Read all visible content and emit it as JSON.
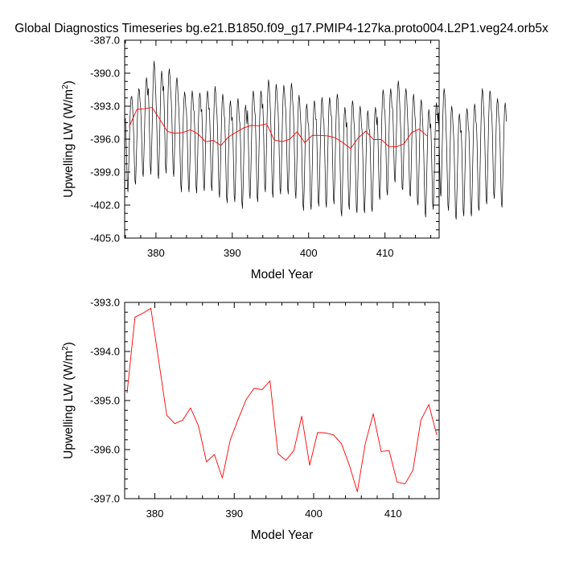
{
  "title": "Global Diagnostics Timeseries bg.e21.B1850.f09_g17.PMIP4-127ka.proto004.L2P1.veg24.orb5x",
  "colors": {
    "monthly": "#000000",
    "annual": "#ff0000",
    "axis": "#000000",
    "background": "#ffffff"
  },
  "chart_data": [
    {
      "type": "line",
      "xlabel": "Model Year",
      "ylabel": "Upwelling LW (W/m",
      "ylabel_sup": "2",
      "ylabel_end": ")",
      "xlim": [
        375.9,
        417.1
      ],
      "ylim": [
        -405.0,
        -387.0
      ],
      "xticks": [
        380,
        390,
        400,
        410
      ],
      "xtick_labels": [
        "380",
        "390",
        "400",
        "410"
      ],
      "yticks": [
        -405.0,
        -402.0,
        -399.0,
        -396.0,
        -393.0,
        -390.0,
        -387.0
      ],
      "ytick_labels": [
        "-405.0",
        "-402.0",
        "-399.0",
        "-396.0",
        "-393.0",
        "-390.0",
        "-387.0"
      ],
      "grid": false,
      "series": [
        {
          "color": "#000000",
          "x_start": 376.0,
          "x_step": 0.0833333,
          "values": [
            -394.1,
            -395.8,
            -398.0,
            -400.2,
            -400.8,
            -399.0,
            -396.7,
            -394.4,
            -392.9,
            -392.2,
            -392.1,
            -392.8,
            -393.9,
            -395.6,
            -397.9,
            -399.8,
            -400.1,
            -398.2,
            -396.0,
            -393.8,
            -392.2,
            -391.4,
            -391.6,
            -392.6,
            -393.2,
            -394.7,
            -397.0,
            -399.0,
            -399.4,
            -397.6,
            -395.3,
            -392.9,
            -391.2,
            -390.4,
            -390.8,
            -392.0,
            -391.4,
            -393.2,
            -395.8,
            -398.4,
            -399.2,
            -397.6,
            -395.0,
            -392.0,
            -389.9,
            -388.9,
            -389.5,
            -390.9,
            -392.3,
            -394.0,
            -396.5,
            -399.0,
            -399.6,
            -397.9,
            -395.4,
            -392.6,
            -390.6,
            -389.8,
            -390.4,
            -391.6,
            -391.2,
            -393.1,
            -395.7,
            -398.4,
            -399.1,
            -397.4,
            -394.8,
            -391.9,
            -390.1,
            -389.6,
            -390.3,
            -391.5,
            -392.4,
            -394.0,
            -396.5,
            -398.9,
            -399.4,
            -397.6,
            -395.0,
            -392.5,
            -390.8,
            -390.4,
            -391.1,
            -392.3,
            -393.3,
            -395.0,
            -397.6,
            -400.1,
            -400.8,
            -398.9,
            -396.6,
            -394.1,
            -392.4,
            -391.7,
            -392.1,
            -393.1,
            -393.5,
            -395.1,
            -397.7,
            -400.2,
            -400.8,
            -399.1,
            -396.7,
            -394.1,
            -392.3,
            -391.6,
            -392.1,
            -393.3,
            -393.5,
            -395.2,
            -397.9,
            -400.3,
            -400.9,
            -399.0,
            -396.5,
            -394.0,
            -392.3,
            -391.8,
            -392.3,
            -393.5,
            -393.3,
            -395.1,
            -397.7,
            -400.2,
            -400.7,
            -399.0,
            -396.5,
            -393.9,
            -392.3,
            -391.6,
            -392.0,
            -393.3,
            -393.2,
            -395.0,
            -397.6,
            -400.2,
            -400.7,
            -398.8,
            -396.4,
            -393.8,
            -391.9,
            -391.2,
            -391.8,
            -393.0,
            -393.8,
            -395.5,
            -398.2,
            -400.8,
            -401.3,
            -399.6,
            -397.0,
            -394.4,
            -392.6,
            -391.9,
            -392.4,
            -393.7,
            -394.1,
            -395.9,
            -398.7,
            -401.3,
            -401.8,
            -400.0,
            -397.4,
            -394.9,
            -393.1,
            -392.5,
            -393.1,
            -394.3,
            -394.0,
            -395.7,
            -398.4,
            -401.2,
            -401.7,
            -399.9,
            -397.2,
            -394.6,
            -392.8,
            -392.3,
            -393.0,
            -394.2,
            -394.6,
            -396.3,
            -399.1,
            -401.7,
            -402.3,
            -400.5,
            -397.8,
            -395.2,
            -393.4,
            -392.9,
            -393.6,
            -394.6,
            -393.4,
            -395.3,
            -398.1,
            -400.9,
            -401.4,
            -399.5,
            -396.8,
            -394.1,
            -392.2,
            -391.6,
            -392.1,
            -393.3,
            -393.8,
            -395.7,
            -398.5,
            -401.2,
            -401.7,
            -399.8,
            -397.0,
            -394.3,
            -392.4,
            -391.6,
            -392.0,
            -393.2,
            -392.8,
            -394.7,
            -397.6,
            -400.3,
            -400.8,
            -398.8,
            -396.1,
            -393.4,
            -391.4,
            -390.6,
            -391.1,
            -392.2,
            -393.5,
            -395.4,
            -398.2,
            -400.8,
            -401.3,
            -399.3,
            -396.5,
            -393.8,
            -391.8,
            -391.0,
            -391.5,
            -392.6,
            -393.4,
            -395.2,
            -397.9,
            -400.5,
            -401.0,
            -399.1,
            -396.5,
            -393.8,
            -391.9,
            -391.1,
            -391.5,
            -392.7,
            -393.3,
            -395.2,
            -397.9,
            -400.5,
            -401.0,
            -399.0,
            -396.4,
            -393.6,
            -391.7,
            -390.9,
            -391.4,
            -392.6,
            -393.4,
            -395.2,
            -398.1,
            -400.8,
            -401.4,
            -399.6,
            -397.1,
            -394.4,
            -392.6,
            -392.0,
            -392.6,
            -393.8,
            -394.8,
            -396.6,
            -399.4,
            -401.9,
            -402.5,
            -400.6,
            -398.0,
            -395.3,
            -393.4,
            -392.8,
            -393.3,
            -394.5,
            -394.7,
            -396.6,
            -399.3,
            -401.9,
            -402.4,
            -400.5,
            -397.8,
            -395.1,
            -393.2,
            -392.5,
            -392.9,
            -394.2,
            -394.2,
            -396.1,
            -398.9,
            -401.6,
            -402.1,
            -400.3,
            -397.7,
            -394.9,
            -392.9,
            -392.2,
            -392.7,
            -394.0,
            -394.4,
            -396.3,
            -399.0,
            -401.7,
            -402.2,
            -400.3,
            -397.6,
            -394.9,
            -392.9,
            -392.2,
            -392.6,
            -393.8,
            -393.9,
            -395.9,
            -398.7,
            -401.4,
            -401.9,
            -400.0,
            -397.3,
            -394.5,
            -392.6,
            -391.9,
            -392.3,
            -393.6,
            -395.1,
            -397.0,
            -399.8,
            -402.5,
            -403.0,
            -401.1,
            -398.5,
            -395.7,
            -393.8,
            -393.1,
            -393.5,
            -394.9,
            -394.5,
            -396.4,
            -399.2,
            -401.9,
            -402.4,
            -400.6,
            -397.9,
            -395.2,
            -393.2,
            -392.5,
            -392.9,
            -394.2,
            -395.0,
            -396.9,
            -399.6,
            -402.2,
            -402.7,
            -400.9,
            -398.2,
            -395.6,
            -393.6,
            -393.0,
            -393.5,
            -394.7,
            -395.2,
            -397.0,
            -399.7,
            -402.3,
            -402.7,
            -401.0,
            -398.5,
            -395.9,
            -394.0,
            -393.4,
            -393.9,
            -395.1,
            -395.2,
            -397.0,
            -399.6,
            -402.2,
            -402.6,
            -400.8,
            -398.3,
            -395.6,
            -393.7,
            -393.1,
            -393.5,
            -394.7,
            -394.0,
            -395.8,
            -398.4,
            -401.1,
            -401.5,
            -399.7,
            -397.1,
            -394.3,
            -392.3,
            -391.5,
            -391.9,
            -393.2,
            -393.5,
            -395.3,
            -398.0,
            -400.7,
            -401.1,
            -399.3,
            -396.7,
            -394.0,
            -392.1,
            -391.4,
            -391.9,
            -393.1,
            -393.2,
            -394.6,
            -397.3,
            -399.6,
            -399.9,
            -398.0,
            -395.5,
            -393.0,
            -391.3,
            -390.7,
            -391.3,
            -392.5,
            -394.0,
            -395.4,
            -398.0,
            -400.4,
            -400.6,
            -398.8,
            -396.3,
            -393.7,
            -392.0,
            -391.4,
            -391.9,
            -393.2,
            -394.6,
            -396.1,
            -398.7,
            -401.0,
            -401.2,
            -399.3,
            -396.8,
            -394.2,
            -392.5,
            -391.9,
            -392.5,
            -393.8,
            -394.5,
            -396.2,
            -399.0,
            -401.6,
            -402.0,
            -400.2,
            -397.6,
            -394.9,
            -393.0,
            -392.4,
            -392.9,
            -394.1,
            -395.3,
            -397.2,
            -400.0,
            -402.6,
            -403.1,
            -401.2,
            -398.6,
            -395.9,
            -393.9,
            -393.3,
            -393.8,
            -395.0,
            -394.6,
            -396.5,
            -399.2,
            -401.9,
            -402.4,
            -400.6,
            -398.0,
            -395.3,
            -393.3,
            -392.7,
            -393.2,
            -394.4,
            -393.6,
            -395.4,
            -398.2,
            -400.8,
            -401.2,
            -399.4,
            -396.8,
            -394.0,
            -392.1,
            -391.4,
            -391.9,
            -393.1,
            -394.8,
            -396.7,
            -399.4,
            -402.0,
            -402.5,
            -400.7,
            -398.1,
            -395.5,
            -393.6,
            -393.0,
            -393.5,
            -394.7,
            -395.7,
            -397.6,
            -400.3,
            -402.9,
            -403.3,
            -401.4,
            -398.9,
            -396.2,
            -394.3,
            -393.7,
            -394.2,
            -395.4,
            -395.2,
            -397.2,
            -399.9,
            -402.5,
            -403.0,
            -401.1,
            -398.5,
            -395.7,
            -393.8,
            -393.2,
            -393.7,
            -394.9,
            -395.3,
            -397.3,
            -400.0,
            -402.6,
            -403.0,
            -401.1,
            -398.3,
            -395.6,
            -393.5,
            -392.8,
            -393.2,
            -394.4,
            -394.7,
            -396.7,
            -399.6,
            -402.2,
            -402.5,
            -400.4,
            -397.5,
            -394.6,
            -392.4,
            -391.4,
            -391.8,
            -393.0,
            -394.1,
            -396.1,
            -398.9,
            -401.5,
            -401.9,
            -399.9,
            -397.2,
            -394.4,
            -392.4,
            -391.6,
            -391.9,
            -393.2,
            -393.8,
            -395.5,
            -398.3,
            -400.9,
            -401.4,
            -399.6,
            -397.2,
            -394.6,
            -392.8,
            -392.3,
            -392.8,
            -394.0,
            -394.6,
            -396.4,
            -399.2,
            -401.8,
            -402.2,
            -400.4,
            -397.9,
            -395.2,
            -393.3,
            -392.7,
            -393.2,
            -394.4
          ]
        },
        {
          "color": "#ff0000",
          "x": [
            376.5,
            377.5,
            378.5,
            379.5,
            380.5,
            381.5,
            382.5,
            383.5,
            384.5,
            385.5,
            386.5,
            387.5,
            388.5,
            389.5,
            390.5,
            391.5,
            392.5,
            393.5,
            394.5,
            395.5,
            396.5,
            397.5,
            398.5,
            399.5,
            400.5,
            401.5,
            402.5,
            403.5,
            404.5,
            405.5,
            406.5,
            407.5,
            408.5,
            409.5,
            410.5,
            411.5,
            412.5,
            413.5,
            414.5,
            415.5
          ],
          "values": [
            -394.85,
            -393.3,
            -393.22,
            -393.12,
            -394.2,
            -395.3,
            -395.47,
            -395.4,
            -395.15,
            -395.52,
            -396.25,
            -396.1,
            -396.58,
            -395.8,
            -395.38,
            -394.98,
            -394.75,
            -394.78,
            -394.6,
            -396.08,
            -396.22,
            -396.02,
            -395.32,
            -396.32,
            -395.65,
            -395.66,
            -395.7,
            -395.88,
            -396.32,
            -396.86,
            -395.88,
            -395.27,
            -396.04,
            -396.02,
            -396.66,
            -396.7,
            -396.42,
            -395.4,
            -395.08,
            -395.7
          ]
        }
      ]
    },
    {
      "type": "line",
      "xlabel": "Model Year",
      "ylabel": "Upwelling LW (W/m",
      "ylabel_sup": "2",
      "ylabel_end": ")",
      "xlim": [
        376.2,
        415.8
      ],
      "ylim": [
        -397.0,
        -393.0
      ],
      "xticks": [
        380,
        390,
        400,
        410
      ],
      "xtick_labels": [
        "380",
        "390",
        "400",
        "410"
      ],
      "yticks": [
        -397.0,
        -396.0,
        -395.0,
        -394.0,
        -393.0
      ],
      "ytick_labels": [
        "-397.0",
        "-396.0",
        "-395.0",
        "-394.0",
        "-393.0"
      ],
      "grid": false,
      "series": [
        {
          "color": "#ff0000",
          "x": [
            376.5,
            377.5,
            378.5,
            379.5,
            380.5,
            381.5,
            382.5,
            383.5,
            384.5,
            385.5,
            386.5,
            387.5,
            388.5,
            389.5,
            390.5,
            391.5,
            392.5,
            393.5,
            394.5,
            395.5,
            396.5,
            397.5,
            398.5,
            399.5,
            400.5,
            401.5,
            402.5,
            403.5,
            404.5,
            405.5,
            406.5,
            407.5,
            408.5,
            409.5,
            410.5,
            411.5,
            412.5,
            413.5,
            414.5,
            415.5
          ],
          "values": [
            -394.85,
            -393.3,
            -393.22,
            -393.12,
            -394.2,
            -395.3,
            -395.47,
            -395.4,
            -395.15,
            -395.52,
            -396.25,
            -396.1,
            -396.58,
            -395.8,
            -395.38,
            -394.98,
            -394.75,
            -394.78,
            -394.6,
            -396.08,
            -396.22,
            -396.02,
            -395.32,
            -396.32,
            -395.65,
            -395.66,
            -395.7,
            -395.88,
            -396.32,
            -396.86,
            -395.88,
            -395.27,
            -396.04,
            -396.02,
            -396.66,
            -396.7,
            -396.42,
            -395.4,
            -395.08,
            -395.7
          ]
        }
      ]
    }
  ]
}
